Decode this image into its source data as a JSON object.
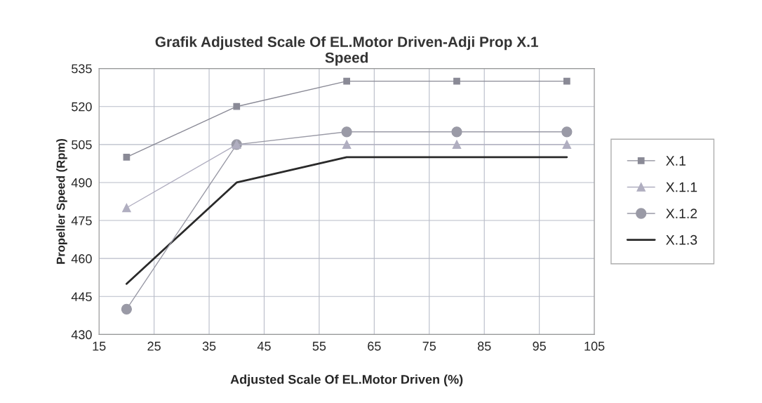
{
  "chart_data": {
    "type": "line",
    "title": "Grafik Adjusted Scale Of EL.Motor Driven-Adji Prop X.1\nSpeed",
    "xlabel": "Adjusted Scale Of EL.Motor Driven (%)",
    "ylabel": "Propeller Speed (Rpm)",
    "x": [
      20,
      40,
      60,
      80,
      100
    ],
    "series": [
      {
        "name": "X.1",
        "color": "#8a8a96",
        "marker": "square",
        "values": [
          500,
          520,
          530,
          530,
          530
        ]
      },
      {
        "name": "X.1.1",
        "color": "#b0aec0",
        "marker": "triangle",
        "values": [
          480,
          505,
          505,
          505,
          505
        ]
      },
      {
        "name": "X.1.2",
        "color": "#9a9aa6",
        "marker": "circle",
        "values": [
          440,
          505,
          510,
          510,
          510
        ]
      },
      {
        "name": "X.1.3",
        "color": "#2a2a2a",
        "marker": "none",
        "values": [
          450,
          490,
          500,
          500,
          500
        ]
      }
    ],
    "xlim": [
      15,
      105
    ],
    "xticks": [
      15,
      25,
      35,
      45,
      55,
      65,
      75,
      85,
      95,
      105
    ],
    "ylim": [
      430,
      535
    ],
    "yticks": [
      430,
      445,
      460,
      475,
      490,
      505,
      520,
      535
    ],
    "grid": true,
    "legend": "right",
    "line_style": "solid"
  }
}
